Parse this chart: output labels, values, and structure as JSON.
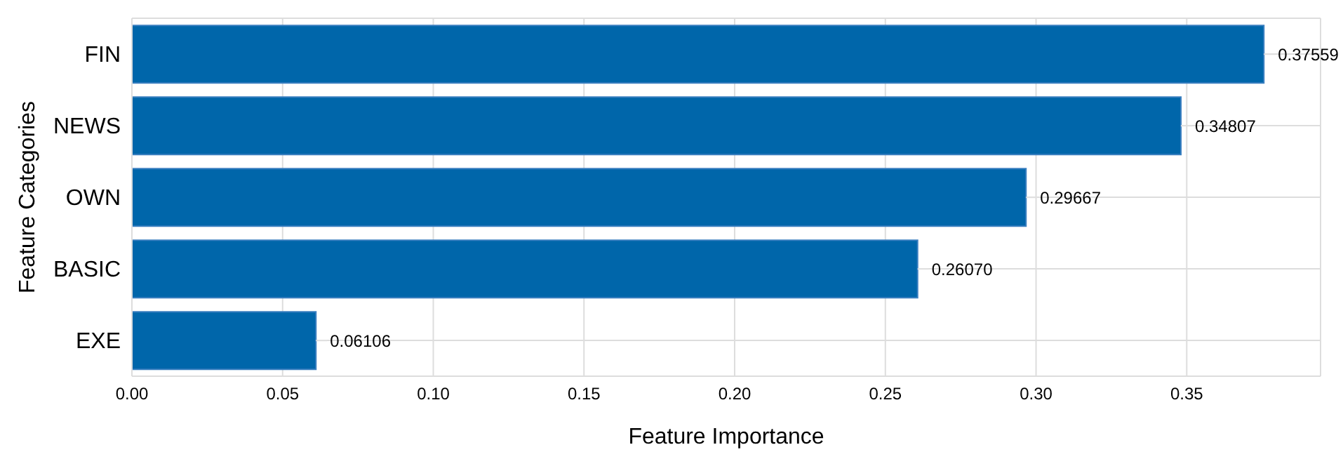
{
  "chart_data": {
    "type": "bar",
    "orientation": "horizontal",
    "xlabel": "Feature Importance",
    "ylabel": "Feature Categories",
    "categories": [
      "FIN",
      "NEWS",
      "OWN",
      "BASIC",
      "EXE"
    ],
    "values": [
      0.37559,
      0.34807,
      0.29667,
      0.2607,
      0.06106
    ],
    "value_labels": [
      "0.37559",
      "0.34807",
      "0.29667",
      "0.26070",
      "0.06106"
    ],
    "color": "#0066aa",
    "xlim": [
      0,
      0.3944
    ],
    "xticks": [
      {
        "value": 0,
        "label": "0.00"
      },
      {
        "value": 0.05,
        "label": "0.05"
      },
      {
        "value": 0.1,
        "label": "0.10"
      },
      {
        "value": 0.15,
        "label": "0.15"
      },
      {
        "value": 0.2,
        "label": "0.20"
      },
      {
        "value": 0.25,
        "label": "0.25"
      },
      {
        "value": 0.3,
        "label": "0.30"
      },
      {
        "value": 0.35,
        "label": "0.35"
      }
    ],
    "grid": true
  }
}
